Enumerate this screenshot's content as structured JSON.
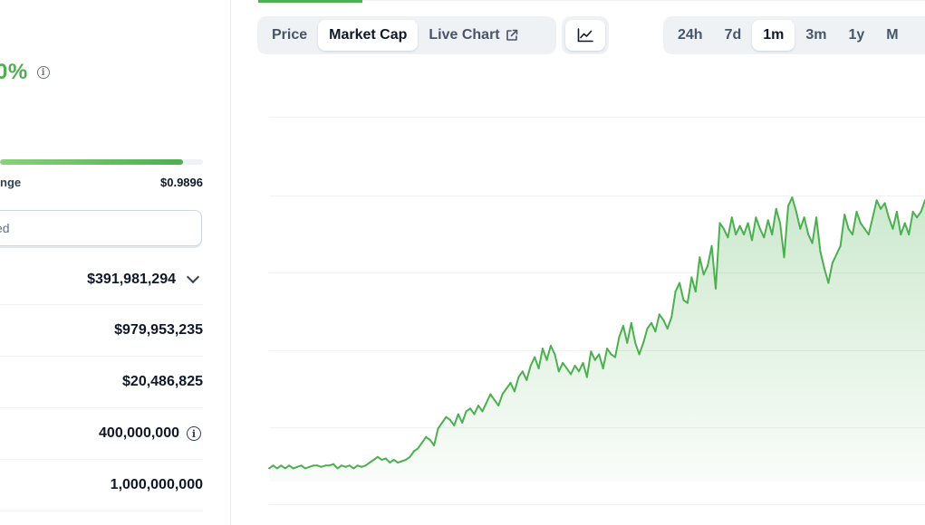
{
  "price_change": {
    "percent_text": "0%"
  },
  "range": {
    "label": "nge",
    "high": "$0.9896",
    "fill_fraction": 0.9
  },
  "select": {
    "value": "ed"
  },
  "stats": [
    {
      "value": "$391,981,294",
      "has_chevron": true
    },
    {
      "value": "$979,953,235"
    },
    {
      "value": "$20,486,825"
    },
    {
      "value": "400,000,000",
      "has_info": true
    },
    {
      "value": "1,000,000,000"
    }
  ],
  "chart_tabs": {
    "price": "Price",
    "market_cap": "Market Cap",
    "live_chart": "Live Chart",
    "active": "market_cap"
  },
  "chart_type_icon": "line-chart-icon",
  "time_ranges": [
    "24h",
    "7d",
    "1m",
    "3m",
    "1y",
    "M"
  ],
  "active_range": "1m",
  "colors": {
    "accent": "#4caf50",
    "line": "#4caf50",
    "text": "#0f172a",
    "muted": "#475569"
  },
  "chart_data": {
    "type": "area",
    "title": "",
    "xlabel": "",
    "ylabel": "",
    "grid": true,
    "ylim": [
      0,
      1
    ],
    "series": [
      {
        "values": [
          0.04,
          0.05,
          0.04,
          0.05,
          0.04,
          0.05,
          0.04,
          0.045,
          0.05,
          0.04,
          0.045,
          0.05,
          0.05,
          0.045,
          0.05,
          0.05,
          0.055,
          0.04,
          0.05,
          0.045,
          0.05,
          0.04,
          0.05,
          0.045,
          0.05,
          0.06,
          0.07,
          0.08,
          0.07,
          0.075,
          0.06,
          0.07,
          0.06,
          0.065,
          0.07,
          0.08,
          0.1,
          0.11,
          0.13,
          0.15,
          0.14,
          0.12,
          0.18,
          0.2,
          0.22,
          0.21,
          0.19,
          0.23,
          0.2,
          0.24,
          0.25,
          0.23,
          0.26,
          0.24,
          0.27,
          0.3,
          0.28,
          0.26,
          0.3,
          0.32,
          0.34,
          0.31,
          0.36,
          0.38,
          0.35,
          0.4,
          0.43,
          0.39,
          0.46,
          0.42,
          0.47,
          0.44,
          0.38,
          0.41,
          0.39,
          0.37,
          0.4,
          0.38,
          0.41,
          0.36,
          0.45,
          0.42,
          0.44,
          0.39,
          0.46,
          0.44,
          0.43,
          0.5,
          0.54,
          0.48,
          0.55,
          0.48,
          0.44,
          0.48,
          0.53,
          0.55,
          0.52,
          0.58,
          0.56,
          0.53,
          0.57,
          0.66,
          0.69,
          0.63,
          0.62,
          0.71,
          0.66,
          0.78,
          0.72,
          0.75,
          0.82,
          0.67,
          0.9,
          0.88,
          0.85,
          0.92,
          0.86,
          0.89,
          0.86,
          0.9,
          0.84,
          0.92,
          0.88,
          0.85,
          0.91,
          0.86,
          0.95,
          0.9,
          0.78,
          0.96,
          0.99,
          0.94,
          0.88,
          0.92,
          0.86,
          0.83,
          0.92,
          0.8,
          0.74,
          0.69,
          0.76,
          0.79,
          0.82,
          0.93,
          0.88,
          0.86,
          0.94,
          0.9,
          0.88,
          0.86,
          0.92,
          0.98,
          0.95,
          0.97,
          0.92,
          0.88,
          0.94,
          0.86,
          0.9,
          0.86,
          0.94,
          0.92,
          0.94,
          0.98
        ]
      }
    ]
  }
}
